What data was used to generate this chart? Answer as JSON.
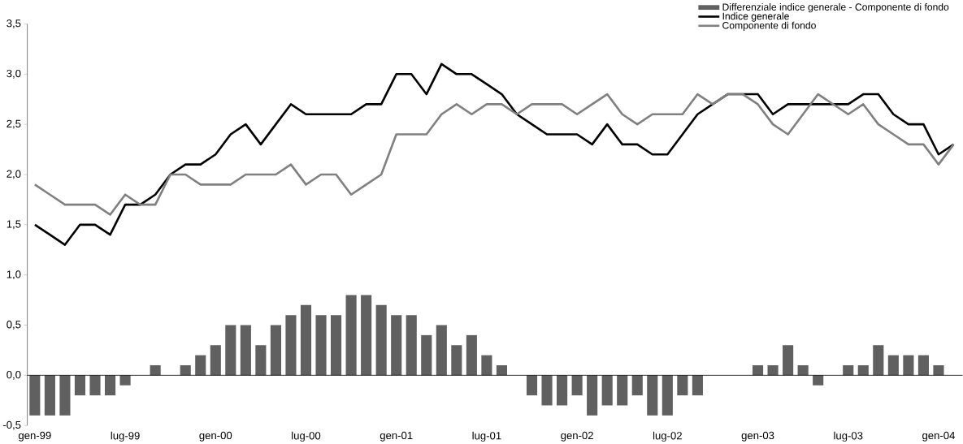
{
  "chart_data": {
    "type": "bar",
    "categories": [
      "gen-99",
      null,
      null,
      null,
      null,
      null,
      "lug-99",
      null,
      null,
      null,
      null,
      null,
      "gen-00",
      null,
      null,
      null,
      null,
      null,
      "lug-00",
      null,
      null,
      null,
      null,
      null,
      "gen-01",
      null,
      null,
      null,
      null,
      null,
      "lug-01",
      null,
      null,
      null,
      null,
      null,
      "gen-02",
      null,
      null,
      null,
      null,
      null,
      "lug-02",
      null,
      null,
      null,
      null,
      null,
      "gen-03",
      null,
      null,
      null,
      null,
      null,
      "lug-03",
      null,
      null,
      null,
      null,
      null,
      "gen-04",
      null
    ],
    "series": [
      {
        "name": "Differenziale indice generale - Componente di fondo",
        "color": "#606060",
        "values": [
          -0.4,
          -0.4,
          -0.4,
          -0.2,
          -0.2,
          -0.2,
          -0.1,
          0,
          0.1,
          0,
          0.1,
          0.2,
          0.3,
          0.5,
          0.5,
          0.3,
          0.5,
          0.6,
          0.7,
          0.6,
          0.6,
          0.8,
          0.8,
          0.7,
          0.6,
          0.6,
          0.4,
          0.5,
          0.3,
          0.4,
          0.2,
          0.1,
          0,
          -0.2,
          -0.3,
          -0.3,
          -0.2,
          -0.4,
          -0.3,
          -0.3,
          -0.2,
          -0.4,
          -0.4,
          -0.2,
          -0.2,
          0,
          0,
          0,
          0.1,
          0.1,
          0.3,
          0.1,
          -0.1,
          0,
          0.1,
          0.1,
          0.3,
          0.2,
          0.2,
          0.2,
          0.1,
          null
        ]
      },
      {
        "name": "Indice generale",
        "type": "line",
        "color": "#000000",
        "values": [
          1.5,
          1.4,
          1.3,
          1.5,
          1.5,
          1.4,
          1.7,
          1.7,
          1.8,
          2.0,
          2.1,
          2.1,
          2.2,
          2.4,
          2.5,
          2.3,
          2.5,
          2.7,
          2.6,
          2.6,
          2.6,
          2.6,
          2.7,
          2.7,
          3.0,
          3.0,
          2.8,
          3.1,
          3.0,
          3.0,
          2.9,
          2.8,
          2.6,
          2.5,
          2.4,
          2.4,
          2.4,
          2.3,
          2.5,
          2.3,
          2.3,
          2.2,
          2.2,
          2.4,
          2.6,
          2.7,
          2.8,
          2.8,
          2.8,
          2.6,
          2.7,
          2.7,
          2.7,
          2.7,
          2.7,
          2.8,
          2.8,
          2.6,
          2.5,
          2.5,
          2.2,
          2.3
        ]
      },
      {
        "name": "Componente di fondo",
        "type": "line",
        "color": "#808080",
        "values": [
          1.9,
          1.8,
          1.7,
          1.7,
          1.7,
          1.6,
          1.8,
          1.7,
          1.7,
          2.0,
          2.0,
          1.9,
          1.9,
          1.9,
          2.0,
          2.0,
          2.0,
          2.1,
          1.9,
          2.0,
          2.0,
          1.8,
          1.9,
          2.0,
          2.4,
          2.4,
          2.4,
          2.6,
          2.7,
          2.6,
          2.7,
          2.7,
          2.6,
          2.7,
          2.7,
          2.7,
          2.6,
          2.7,
          2.8,
          2.6,
          2.5,
          2.6,
          2.6,
          2.6,
          2.8,
          2.7,
          2.8,
          2.8,
          2.7,
          2.5,
          2.4,
          2.6,
          2.8,
          2.7,
          2.6,
          2.7,
          2.5,
          2.4,
          2.3,
          2.3,
          2.1,
          2.3
        ]
      }
    ],
    "ylim": [
      -0.5,
      3.5
    ],
    "yticks": [
      {
        "value": -0.5,
        "label": "-0,5"
      },
      {
        "value": 0,
        "label": "0,0"
      },
      {
        "value": 0.5,
        "label": "0,5"
      },
      {
        "value": 1.0,
        "label": "1,0"
      },
      {
        "value": 1.5,
        "label": "1,5"
      },
      {
        "value": 2.0,
        "label": "2,0"
      },
      {
        "value": 2.5,
        "label": "2,5"
      },
      {
        "value": 3.0,
        "label": "3,0"
      },
      {
        "value": 3.5,
        "label": "3,5"
      }
    ],
    "legend": "top right",
    "marker": "none",
    "line_style": "solid"
  }
}
